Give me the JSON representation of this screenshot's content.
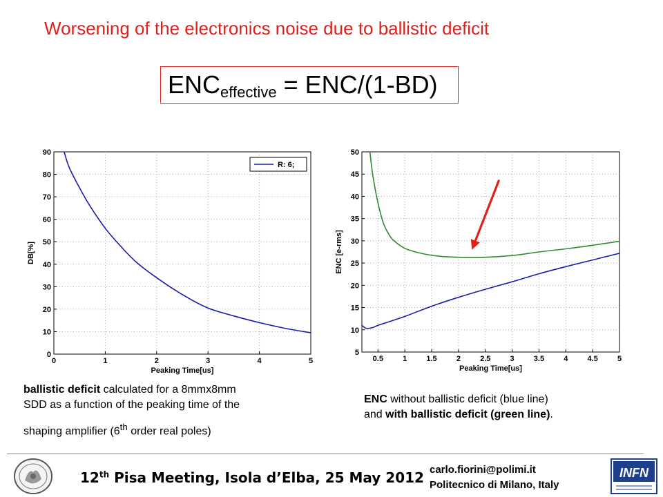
{
  "slide": {
    "title": "Worsening of the electronics noise due to ballistic deficit",
    "formula": {
      "lhs": "ENC",
      "sub": "effective",
      "rhs": " = ENC/(1-BD)"
    }
  },
  "captions": {
    "left": {
      "bold": "ballistic deficit",
      "line1_rest": " calculated for a 8mmx8mm",
      "line2": "SDD as a function of the peaking time of the",
      "line3_pre": "shaping amplifier (6",
      "line3_sup": "th",
      "line3_post": " order real poles)"
    },
    "right": {
      "b1": "ENC",
      "t1": " without ballistic deficit (blue line)",
      "t2": "and ",
      "b2": "with ballistic deficit (green line)",
      "t3": "."
    }
  },
  "footer": {
    "meeting_pre": "12",
    "meeting_sup": "th",
    "meeting_post": " Pisa Meeting, Isola d’Elba, 25 May 2012",
    "email": "carlo.fiorini@polimi.it",
    "affiliation": "Politecnico di Milano, Italy",
    "logo_right_text": "INFN"
  },
  "colors": {
    "title": "#e0201b",
    "blue": "#1a1aa8",
    "green": "#2e8b2e",
    "arrow": "#e0201b"
  },
  "chart_data": [
    {
      "type": "line",
      "xlabel": "Peaking Time[us]",
      "ylabel": "DB[%]",
      "xlim": [
        0,
        5
      ],
      "ylim": [
        0,
        90
      ],
      "xticks": [
        "0",
        "1",
        "2",
        "3",
        "4",
        "5"
      ],
      "yticks": [
        "0",
        "10",
        "20",
        "30",
        "40",
        "50",
        "60",
        "70",
        "80",
        "90"
      ],
      "grid": "dotted",
      "legend": "top-right",
      "series": [
        {
          "name": "R: 6;",
          "color": "#1a1aa8",
          "x": [
            0.2,
            0.3,
            0.5,
            0.7,
            1.0,
            1.3,
            1.6,
            2.0,
            2.5,
            3.0,
            3.5,
            4.0,
            4.5,
            5.0
          ],
          "y": [
            90,
            83,
            74,
            66,
            56,
            48,
            41,
            34,
            26.5,
            20.5,
            17,
            14,
            11.5,
            9.5
          ]
        }
      ]
    },
    {
      "type": "line",
      "xlabel": "Peaking Time[us]",
      "ylabel": "ENC [e-rms]",
      "xlim": [
        0.2,
        5
      ],
      "ylim": [
        5,
        50
      ],
      "xticks": [
        "0.5",
        "1",
        "1.5",
        "2",
        "2.5",
        "3",
        "3.5",
        "4",
        "4.5",
        "5"
      ],
      "yticks": [
        "5",
        "10",
        "15",
        "20",
        "25",
        "30",
        "35",
        "40",
        "45",
        "50"
      ],
      "grid": "dotted",
      "series": [
        {
          "color": "#1a1aa8",
          "x": [
            0.2,
            0.25,
            0.3,
            0.4,
            0.5,
            0.7,
            1.0,
            1.5,
            2.0,
            2.5,
            3.0,
            3.5,
            4.0,
            4.5,
            5.0
          ],
          "y": [
            11,
            10.5,
            10.3,
            10.5,
            11,
            11.8,
            13,
            15.3,
            17.3,
            19.1,
            20.8,
            22.6,
            24.2,
            25.7,
            27.2
          ]
        },
        {
          "color": "#2e8b2e",
          "x": [
            0.35,
            0.4,
            0.5,
            0.6,
            0.7,
            0.8,
            1.0,
            1.3,
            1.6,
            2.0,
            2.5,
            3.0,
            3.5,
            4.0,
            4.5,
            5.0
          ],
          "y": [
            50,
            45,
            38.5,
            34,
            31.5,
            30,
            28.3,
            27.2,
            26.6,
            26.3,
            26.3,
            26.7,
            27.5,
            28.2,
            29,
            29.9
          ]
        }
      ],
      "annotation": {
        "type": "arrow",
        "from": [
          2.75,
          43.5
        ],
        "to": [
          2.25,
          28
        ],
        "color": "#e0201b"
      }
    }
  ]
}
